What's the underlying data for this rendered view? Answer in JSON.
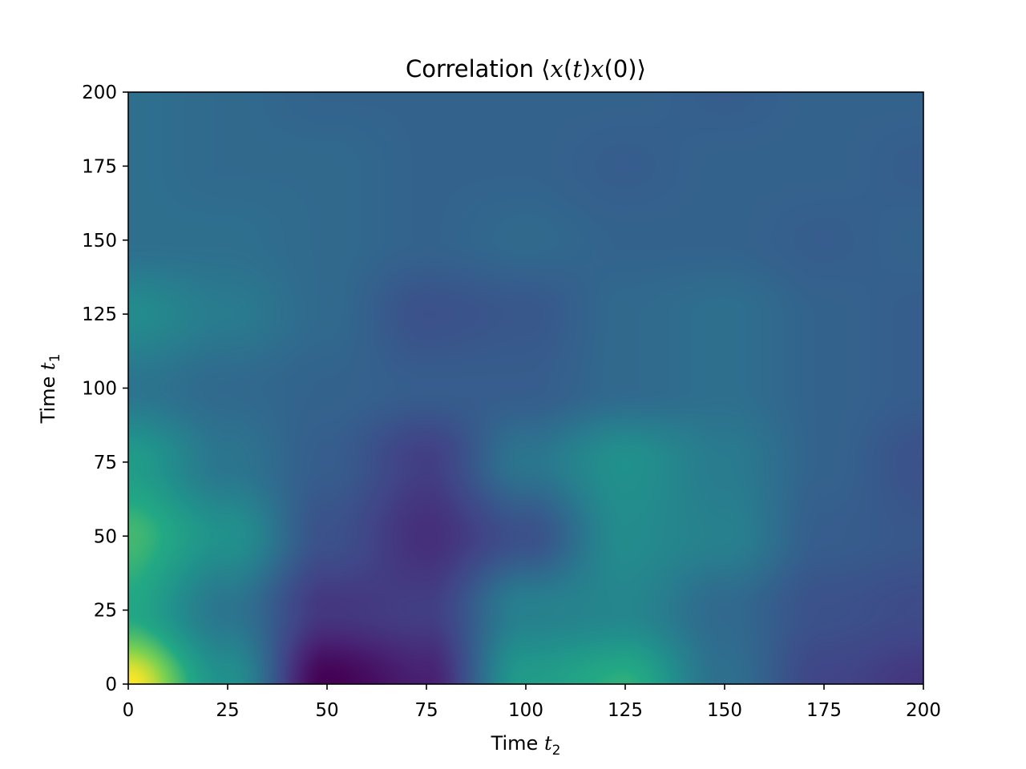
{
  "chart_data": {
    "type": "heatmap",
    "title": {
      "prefix": "Correlation ⟨",
      "var1": "x",
      "open1": "(",
      "arg1": "t",
      "close1": ")",
      "var2": "x",
      "arg2": "(0)",
      "suffix": "⟩"
    },
    "xlabel": {
      "text": "Time ",
      "var": "t",
      "sub": "2"
    },
    "ylabel": {
      "text": "Time ",
      "var": "t",
      "sub": "1"
    },
    "xlim": [
      0,
      200
    ],
    "ylim": [
      0,
      200
    ],
    "x_ticks": [
      0,
      25,
      50,
      75,
      100,
      125,
      150,
      175,
      200
    ],
    "y_ticks": [
      0,
      25,
      50,
      75,
      100,
      125,
      150,
      175,
      200
    ],
    "colormap": "viridis",
    "colorbar": false,
    "grid": false,
    "grid_resolution": {
      "nx": 9,
      "ny": 9,
      "x_step": 25,
      "y_step": 25
    },
    "values": [
      [
        1.0,
        0.35,
        -0.75,
        -0.55,
        0.45,
        0.6,
        0.05,
        -0.3,
        -0.4
      ],
      [
        0.55,
        0.1,
        -0.4,
        -0.35,
        0.2,
        0.25,
        0.0,
        -0.2,
        -0.25
      ],
      [
        0.65,
        0.35,
        -0.2,
        -0.45,
        -0.2,
        0.3,
        0.2,
        -0.1,
        -0.15
      ],
      [
        0.45,
        0.1,
        -0.1,
        -0.35,
        0.1,
        0.35,
        0.15,
        -0.05,
        -0.2
      ],
      [
        0.1,
        0.0,
        -0.05,
        -0.1,
        -0.1,
        0.0,
        0.05,
        -0.05,
        -0.1
      ],
      [
        0.3,
        0.15,
        0.0,
        -0.2,
        -0.15,
        0.0,
        0.05,
        -0.05,
        -0.1
      ],
      [
        0.05,
        0.05,
        0.0,
        -0.05,
        0.0,
        -0.05,
        -0.05,
        -0.1,
        -0.05
      ],
      [
        0.05,
        0.0,
        0.0,
        -0.05,
        -0.05,
        -0.1,
        -0.05,
        -0.05,
        -0.1
      ],
      [
        0.05,
        0.0,
        -0.05,
        -0.05,
        -0.05,
        -0.05,
        -0.1,
        -0.05,
        -0.05
      ]
    ]
  }
}
